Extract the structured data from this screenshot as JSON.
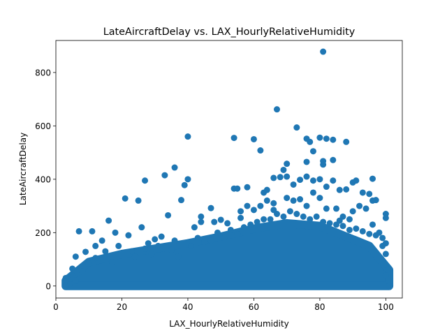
{
  "chart_data": {
    "type": "scatter",
    "title": "LateAircraftDelay vs. LAX_HourlyRelativeHumidity",
    "xlabel": "LAX_HourlyRelativeHumidity",
    "ylabel": "LateAircraftDelay",
    "xlim": [
      0,
      105
    ],
    "ylim": [
      -45,
      920
    ],
    "xticks": [
      0,
      20,
      40,
      60,
      80,
      100
    ],
    "yticks": [
      0,
      200,
      400,
      600,
      800
    ],
    "grid": false,
    "legend": "none",
    "marker_color": "#1f77b4",
    "points": [
      [
        81,
        878
      ],
      [
        67,
        662
      ],
      [
        73,
        594
      ],
      [
        40,
        560
      ],
      [
        54,
        555
      ],
      [
        60,
        550
      ],
      [
        80,
        556
      ],
      [
        82,
        552
      ],
      [
        84,
        548
      ],
      [
        88,
        540
      ],
      [
        76,
        552
      ],
      [
        77,
        540
      ],
      [
        62,
        508
      ],
      [
        78,
        505
      ],
      [
        70,
        458
      ],
      [
        69,
        435
      ],
      [
        36,
        444
      ],
      [
        33,
        415
      ],
      [
        27,
        395
      ],
      [
        40,
        400
      ],
      [
        39,
        378
      ],
      [
        76,
        465
      ],
      [
        81,
        468
      ],
      [
        81,
        455
      ],
      [
        84,
        472
      ],
      [
        96,
        402
      ],
      [
        91,
        395
      ],
      [
        90,
        388
      ],
      [
        25,
        320
      ],
      [
        21,
        328
      ],
      [
        38,
        322
      ],
      [
        34,
        265
      ],
      [
        16,
        245
      ],
      [
        7,
        205
      ],
      [
        11,
        205
      ],
      [
        47,
        292
      ],
      [
        54,
        365
      ],
      [
        55,
        365
      ],
      [
        58,
        370
      ],
      [
        63,
        350
      ],
      [
        64,
        360
      ],
      [
        66,
        405
      ],
      [
        68,
        408
      ],
      [
        70,
        410
      ],
      [
        72,
        380
      ],
      [
        74,
        398
      ],
      [
        76,
        410
      ],
      [
        78,
        395
      ],
      [
        80,
        400
      ],
      [
        82,
        372
      ],
      [
        84,
        395
      ],
      [
        86,
        360
      ],
      [
        88,
        362
      ],
      [
        93,
        350
      ],
      [
        95,
        345
      ],
      [
        97,
        322
      ],
      [
        100,
        270
      ],
      [
        100,
        255
      ],
      [
        6,
        110
      ],
      [
        9,
        128
      ],
      [
        12,
        150
      ],
      [
        14,
        170
      ],
      [
        18,
        200
      ],
      [
        22,
        190
      ],
      [
        26,
        220
      ],
      [
        28,
        160
      ],
      [
        30,
        175
      ],
      [
        32,
        185
      ],
      [
        36,
        170
      ],
      [
        44,
        260
      ],
      [
        44,
        240
      ],
      [
        48,
        240
      ],
      [
        50,
        248
      ],
      [
        52,
        235
      ],
      [
        56,
        280
      ],
      [
        58,
        300
      ],
      [
        60,
        285
      ],
      [
        62,
        300
      ],
      [
        64,
        320
      ],
      [
        66,
        310
      ],
      [
        70,
        330
      ],
      [
        72,
        320
      ],
      [
        74,
        325
      ],
      [
        78,
        350
      ],
      [
        80,
        330
      ],
      [
        82,
        290
      ],
      [
        85,
        290
      ],
      [
        87,
        260
      ],
      [
        89,
        250
      ],
      [
        90,
        280
      ],
      [
        92,
        300
      ],
      [
        94,
        290
      ],
      [
        96,
        320
      ],
      [
        98,
        200
      ],
      [
        99,
        180
      ],
      [
        100,
        160
      ],
      [
        100,
        120
      ],
      [
        100,
        80
      ],
      [
        101,
        0
      ],
      [
        100,
        40
      ],
      [
        3,
        30
      ],
      [
        3,
        15
      ],
      [
        4,
        5
      ],
      [
        3,
        0
      ],
      [
        5,
        40
      ],
      [
        5,
        65
      ],
      [
        6,
        20
      ],
      [
        8,
        55
      ],
      [
        10,
        85
      ],
      [
        12,
        105
      ],
      [
        15,
        130
      ],
      [
        17,
        90
      ],
      [
        19,
        150
      ],
      [
        23,
        130
      ],
      [
        24,
        110
      ],
      [
        27,
        140
      ],
      [
        29,
        120
      ],
      [
        31,
        150
      ],
      [
        35,
        135
      ],
      [
        37,
        110
      ],
      [
        41,
        150
      ],
      [
        43,
        180
      ],
      [
        45,
        165
      ],
      [
        47,
        170
      ],
      [
        49,
        200
      ],
      [
        51,
        180
      ],
      [
        53,
        210
      ],
      [
        55,
        195
      ],
      [
        57,
        220
      ],
      [
        59,
        230
      ],
      [
        61,
        240
      ],
      [
        63,
        250
      ],
      [
        65,
        250
      ],
      [
        67,
        270
      ],
      [
        69,
        260
      ],
      [
        71,
        280
      ],
      [
        73,
        270
      ],
      [
        75,
        260
      ],
      [
        77,
        250
      ],
      [
        79,
        260
      ],
      [
        81,
        240
      ],
      [
        83,
        235
      ],
      [
        85,
        230
      ],
      [
        87,
        225
      ],
      [
        89,
        210
      ],
      [
        91,
        215
      ],
      [
        93,
        205
      ],
      [
        95,
        195
      ],
      [
        97,
        190
      ],
      [
        99,
        150
      ],
      [
        42,
        220
      ],
      [
        56,
        255
      ],
      [
        66,
        285
      ],
      [
        76,
        300
      ],
      [
        86,
        245
      ],
      [
        96,
        230
      ]
    ]
  }
}
